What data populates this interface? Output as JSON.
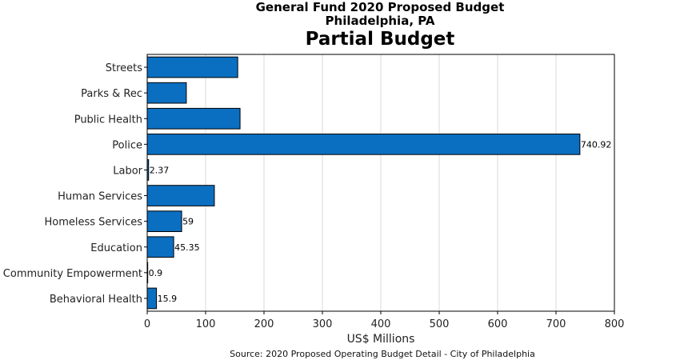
{
  "chart_data": {
    "type": "bar",
    "orientation": "horizontal",
    "suptitle_line1": "General Fund 2020 Proposed Budget",
    "suptitle_line2": "Philadelphia, PA",
    "title": "Partial Budget",
    "xlabel": "US$ Millions",
    "source": "Source: 2020 Proposed Operating Budget Detail - City of Philadelphia",
    "xlim": [
      0,
      800
    ],
    "xticks": [
      0,
      100,
      200,
      300,
      400,
      500,
      600,
      700,
      800
    ],
    "grid": "vertical",
    "bar_color": "#0b6fc1",
    "categories": [
      "Streets",
      "Parks & Rec",
      "Public Health",
      "Police",
      "Labor",
      "Human Services",
      "Homeless Services",
      "Education",
      "Community Empowerment",
      "Behavioral Health"
    ],
    "values": [
      155,
      67,
      159,
      740.92,
      2.37,
      115,
      59,
      45.35,
      0.9,
      15.9
    ],
    "data_labels": [
      "",
      "",
      "",
      "740.92",
      "2.37",
      "",
      "59",
      "45.35",
      "0.9",
      "15.9"
    ]
  }
}
